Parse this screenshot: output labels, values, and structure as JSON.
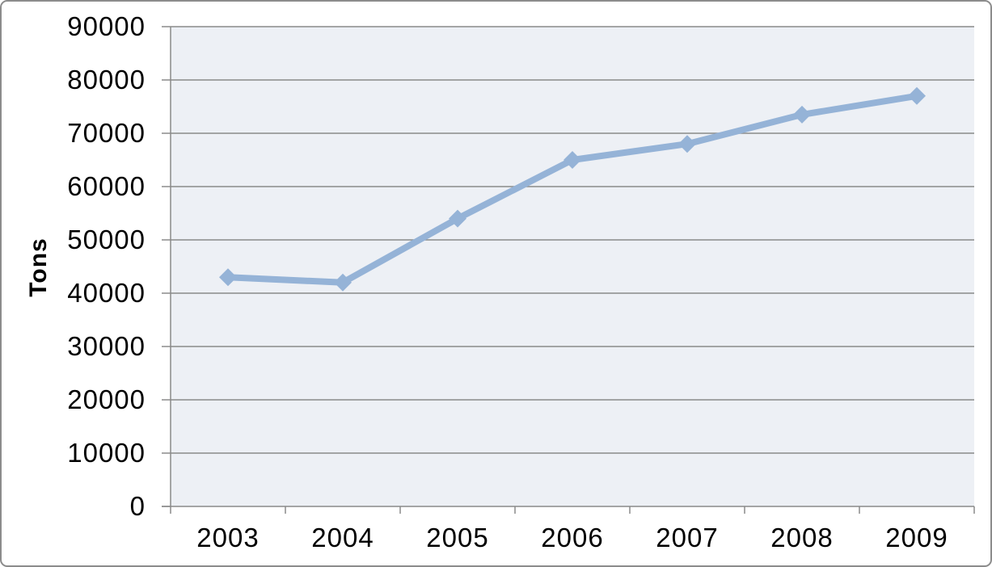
{
  "chart_data": {
    "type": "line",
    "title": "",
    "categories": [
      "2003",
      "2004",
      "2005",
      "2006",
      "2007",
      "2008",
      "2009"
    ],
    "series": [
      {
        "name": "Tons",
        "values": [
          43000,
          42000,
          54000,
          65000,
          68000,
          73500,
          77000
        ]
      }
    ],
    "xlabel": "",
    "ylabel": "Tons",
    "ylim": [
      0,
      90000
    ],
    "ytick_step": 10000,
    "yticks": [
      0,
      10000,
      20000,
      30000,
      40000,
      50000,
      60000,
      70000,
      80000,
      90000
    ],
    "grid": true,
    "legend": false,
    "marker": "diamond",
    "colors": {
      "series_line": "#95B3D7",
      "plot_background": "#EDF0F5",
      "gridline": "#8A8A8A",
      "axis": "#8A8A8A",
      "tick_text": "#000000",
      "chart_border": "#8C8C8C"
    }
  }
}
